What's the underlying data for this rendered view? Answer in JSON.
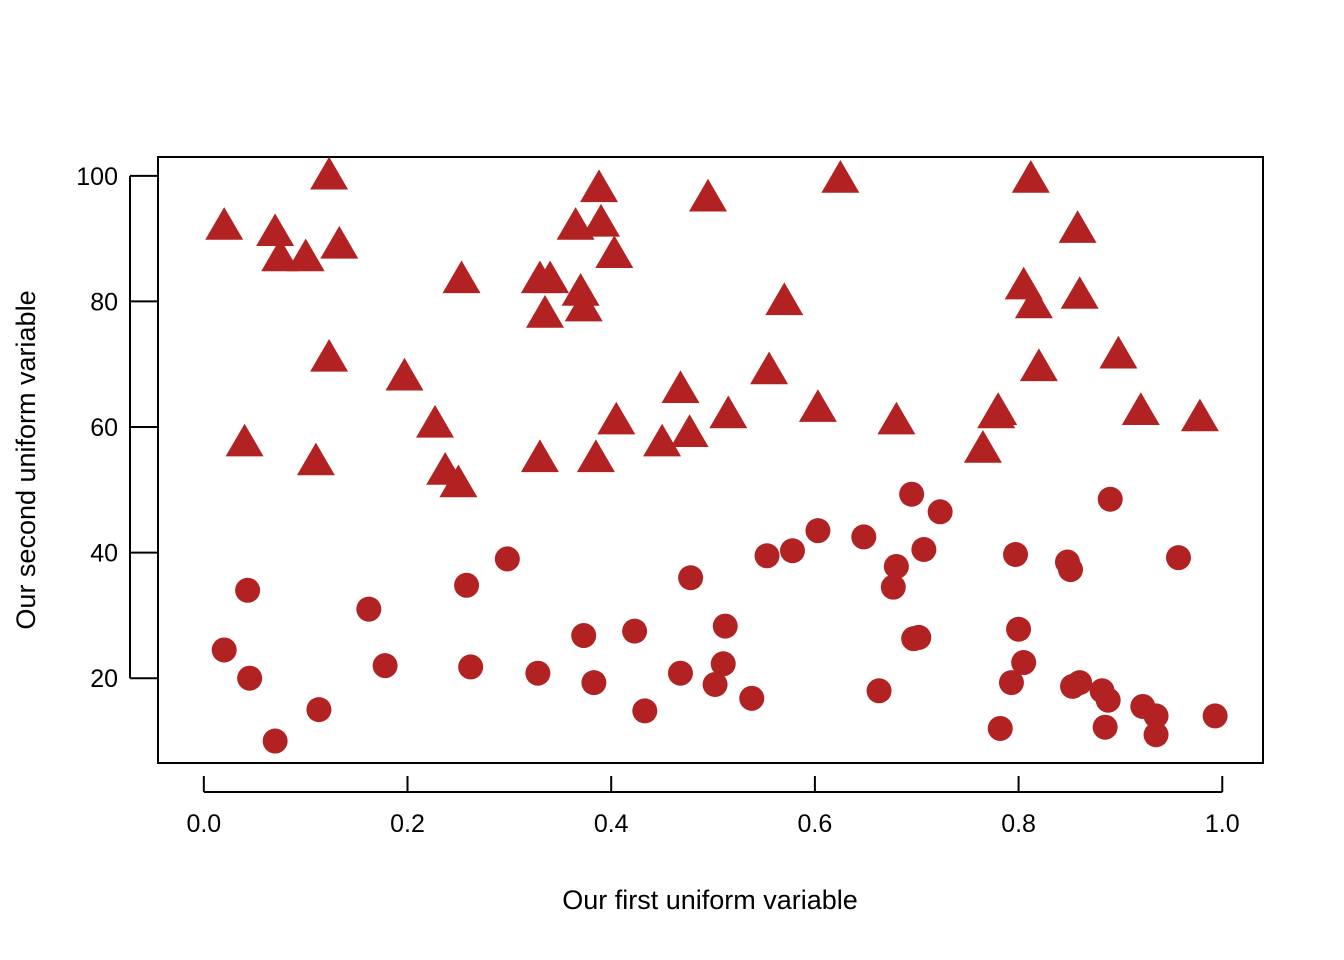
{
  "chart_data": {
    "type": "scatter",
    "title": "",
    "xlabel": "Our first uniform variable",
    "ylabel": "Our second uniform variable",
    "xlim": [
      -0.045,
      1.04
    ],
    "ylim": [
      6.5,
      103
    ],
    "x_ticks": [
      0.0,
      0.2,
      0.4,
      0.6,
      0.8,
      1.0
    ],
    "x_tick_labels": [
      "0.0",
      "0.2",
      "0.4",
      "0.6",
      "0.8",
      "1.0"
    ],
    "y_ticks": [
      20,
      40,
      60,
      80,
      100
    ],
    "y_tick_labels": [
      "20",
      "40",
      "60",
      "80",
      "100"
    ],
    "grid": false,
    "marker_color": "#b22222",
    "series": [
      {
        "marker": "triangle",
        "points": [
          [
            0.02,
            92
          ],
          [
            0.07,
            91
          ],
          [
            0.075,
            87
          ],
          [
            0.1,
            87
          ],
          [
            0.123,
            100
          ],
          [
            0.133,
            89
          ],
          [
            0.04,
            57.5
          ],
          [
            0.123,
            71
          ],
          [
            0.11,
            54.5
          ],
          [
            0.197,
            68
          ],
          [
            0.227,
            60.5
          ],
          [
            0.237,
            53
          ],
          [
            0.25,
            51
          ],
          [
            0.253,
            83.5
          ],
          [
            0.33,
            83.5
          ],
          [
            0.34,
            83.5
          ],
          [
            0.335,
            78
          ],
          [
            0.33,
            55
          ],
          [
            0.365,
            92
          ],
          [
            0.37,
            81.5
          ],
          [
            0.373,
            79
          ],
          [
            0.385,
            55
          ],
          [
            0.388,
            98
          ],
          [
            0.39,
            92.5
          ],
          [
            0.403,
            87.5
          ],
          [
            0.405,
            61
          ],
          [
            0.45,
            57.5
          ],
          [
            0.468,
            66
          ],
          [
            0.477,
            59
          ],
          [
            0.495,
            96.5
          ],
          [
            0.515,
            62
          ],
          [
            0.555,
            69
          ],
          [
            0.57,
            80
          ],
          [
            0.603,
            63
          ],
          [
            0.625,
            99.5
          ],
          [
            0.68,
            61
          ],
          [
            0.765,
            56.5
          ],
          [
            0.778,
            62
          ],
          [
            0.78,
            62.5
          ],
          [
            0.805,
            82.5
          ],
          [
            0.812,
            99.5
          ],
          [
            0.815,
            79.5
          ],
          [
            0.82,
            69.5
          ],
          [
            0.858,
            91.5
          ],
          [
            0.86,
            81
          ],
          [
            0.898,
            71.5
          ],
          [
            0.92,
            62.5
          ],
          [
            0.978,
            61.5
          ]
        ]
      },
      {
        "marker": "circle",
        "points": [
          [
            0.02,
            24.5
          ],
          [
            0.043,
            34
          ],
          [
            0.045,
            20
          ],
          [
            0.07,
            10
          ],
          [
            0.113,
            15
          ],
          [
            0.162,
            31
          ],
          [
            0.178,
            22
          ],
          [
            0.258,
            34.8
          ],
          [
            0.262,
            21.8
          ],
          [
            0.298,
            39
          ],
          [
            0.328,
            20.8
          ],
          [
            0.373,
            26.8
          ],
          [
            0.383,
            19.3
          ],
          [
            0.423,
            27.5
          ],
          [
            0.433,
            14.8
          ],
          [
            0.468,
            20.8
          ],
          [
            0.478,
            36
          ],
          [
            0.502,
            19
          ],
          [
            0.51,
            22.3
          ],
          [
            0.512,
            28.3
          ],
          [
            0.538,
            16.8
          ],
          [
            0.553,
            39.5
          ],
          [
            0.578,
            40.3
          ],
          [
            0.603,
            43.5
          ],
          [
            0.648,
            42.5
          ],
          [
            0.663,
            18
          ],
          [
            0.677,
            34.5
          ],
          [
            0.68,
            37.8
          ],
          [
            0.695,
            49.3
          ],
          [
            0.697,
            26.3
          ],
          [
            0.702,
            26.5
          ],
          [
            0.707,
            40.5
          ],
          [
            0.723,
            46.5
          ],
          [
            0.782,
            12
          ],
          [
            0.793,
            19.3
          ],
          [
            0.797,
            39.7
          ],
          [
            0.8,
            27.8
          ],
          [
            0.805,
            22.5
          ],
          [
            0.848,
            38.5
          ],
          [
            0.851,
            37.3
          ],
          [
            0.853,
            18.7
          ],
          [
            0.86,
            19.3
          ],
          [
            0.882,
            18
          ],
          [
            0.885,
            12.2
          ],
          [
            0.888,
            16.5
          ],
          [
            0.89,
            48.5
          ],
          [
            0.922,
            15.5
          ],
          [
            0.935,
            14
          ],
          [
            0.935,
            11
          ],
          [
            0.957,
            39.2
          ],
          [
            0.993,
            14
          ]
        ]
      }
    ]
  }
}
